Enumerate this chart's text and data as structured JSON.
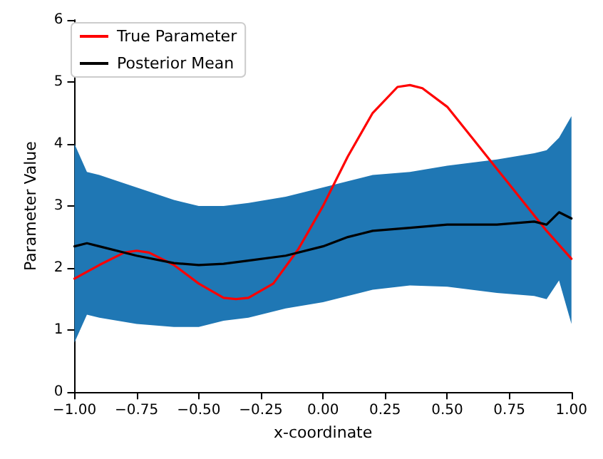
{
  "chart_data": {
    "type": "line",
    "xlabel": "x-coordinate",
    "ylabel": "Parameter Value",
    "xlim": [
      -1,
      1
    ],
    "ylim": [
      0,
      6
    ],
    "xticks": [
      {
        "value": -1,
        "label": "−1.00"
      },
      {
        "value": -0.75,
        "label": "−0.75"
      },
      {
        "value": -0.5,
        "label": "−0.50"
      },
      {
        "value": -0.25,
        "label": "−0.25"
      },
      {
        "value": 0,
        "label": "0.00"
      },
      {
        "value": 0.25,
        "label": "0.25"
      },
      {
        "value": 0.5,
        "label": "0.50"
      },
      {
        "value": 0.75,
        "label": "0.75"
      },
      {
        "value": 1,
        "label": "1.00"
      }
    ],
    "yticks": [
      0,
      1,
      2,
      3,
      4,
      5,
      6
    ],
    "grid": false,
    "legend": "top left",
    "marker": "none",
    "line_style": "solid",
    "series": [
      {
        "name": "True Parameter",
        "color": "#ff0000",
        "x": [
          -1,
          -0.9,
          -0.8,
          -0.75,
          -0.7,
          -0.6,
          -0.5,
          -0.4,
          -0.35,
          -0.3,
          -0.2,
          -0.1,
          0,
          0.1,
          0.2,
          0.3,
          0.35,
          0.4,
          0.5,
          0.6,
          0.7,
          0.8,
          0.9,
          1
        ],
        "values": [
          1.83,
          2.05,
          2.25,
          2.28,
          2.25,
          2.05,
          1.75,
          1.52,
          1.5,
          1.52,
          1.75,
          2.3,
          3.0,
          3.8,
          4.5,
          4.92,
          4.95,
          4.9,
          4.6,
          4.1,
          3.6,
          3.1,
          2.6,
          2.15
        ]
      },
      {
        "name": "Posterior Mean",
        "color": "#000000",
        "x": [
          -1,
          -0.95,
          -0.9,
          -0.75,
          -0.6,
          -0.5,
          -0.4,
          -0.3,
          -0.15,
          0,
          0.1,
          0.2,
          0.35,
          0.5,
          0.7,
          0.85,
          0.9,
          0.95,
          1
        ],
        "values": [
          2.35,
          2.4,
          2.35,
          2.2,
          2.08,
          2.05,
          2.07,
          2.12,
          2.2,
          2.35,
          2.5,
          2.6,
          2.65,
          2.7,
          2.7,
          2.75,
          2.7,
          2.9,
          2.8
        ],
        "lower": [
          0.8,
          1.25,
          1.2,
          1.1,
          1.05,
          1.05,
          1.15,
          1.2,
          1.35,
          1.45,
          1.55,
          1.65,
          1.72,
          1.7,
          1.6,
          1.55,
          1.5,
          1.8,
          1.1
        ],
        "upper": [
          4.0,
          3.55,
          3.5,
          3.3,
          3.1,
          3.0,
          3.0,
          3.05,
          3.15,
          3.3,
          3.4,
          3.5,
          3.55,
          3.65,
          3.75,
          3.85,
          3.9,
          4.1,
          4.45
        ]
      }
    ]
  }
}
